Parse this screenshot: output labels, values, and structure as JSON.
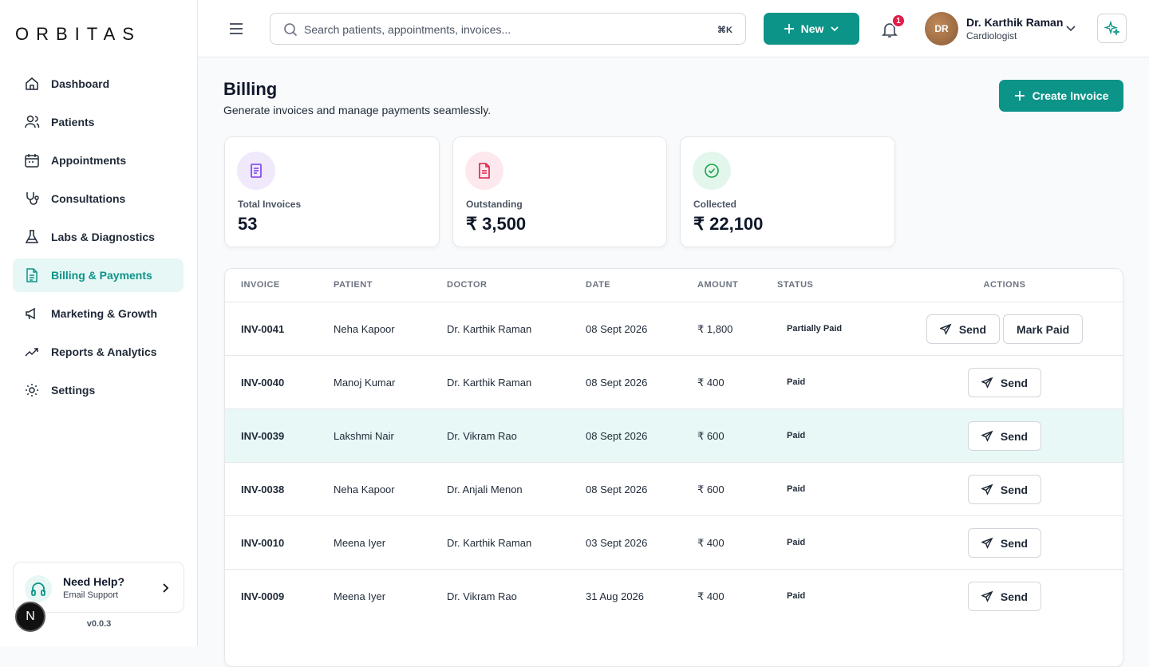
{
  "brand": "ORBITAS",
  "nav": [
    "Dashboard",
    "Patients",
    "Appointments",
    "Consultations",
    "Labs & Diagnostics",
    "Billing & Payments",
    "Marketing & Growth",
    "Reports & Analytics",
    "Settings"
  ],
  "active_nav": 5,
  "help": {
    "title": "Need Help?",
    "subtitle": "Email Support"
  },
  "version": "v0.0.3",
  "dev_badge": "N",
  "search": {
    "placeholder": "Search patients, appointments, invoices...",
    "shortcut": "⌘K"
  },
  "new_button": "New",
  "notifications": 1,
  "user": {
    "initials": "DR",
    "name": "Dr. Karthik Raman",
    "role": "Cardiologist"
  },
  "page": {
    "title": "Billing",
    "subtitle": "Generate invoices and manage payments seamlessly."
  },
  "create_button": "Create Invoice",
  "stats": [
    {
      "label": "Total Invoices",
      "value": "53"
    },
    {
      "label": "Outstanding",
      "value": "₹ 3,500"
    },
    {
      "label": "Collected",
      "value": "₹ 22,100"
    }
  ],
  "table": {
    "columns": [
      "INVOICE",
      "PATIENT",
      "DOCTOR",
      "DATE",
      "AMOUNT",
      "STATUS",
      "ACTIONS"
    ],
    "highlighted_row": 2,
    "rows": [
      [
        "INV-0041",
        "Neha Kapoor",
        "Dr. Karthik Raman",
        "08 Sept 2026",
        "₹ 1,800",
        "Partially Paid",
        [
          "Send",
          "Mark Paid"
        ]
      ],
      [
        "INV-0040",
        "Manoj Kumar",
        "Dr. Karthik Raman",
        "08 Sept 2026",
        "₹ 400",
        "Paid",
        [
          "Send"
        ]
      ],
      [
        "INV-0039",
        "Lakshmi Nair",
        "Dr. Vikram Rao",
        "08 Sept 2026",
        "₹ 600",
        "Paid",
        [
          "Send"
        ]
      ],
      [
        "INV-0038",
        "Neha Kapoor",
        "Dr. Anjali Menon",
        "08 Sept 2026",
        "₹ 600",
        "Paid",
        [
          "Send"
        ]
      ],
      [
        "INV-0010",
        "Meena Iyer",
        "Dr. Karthik Raman",
        "03 Sept 2026",
        "₹ 400",
        "Paid",
        [
          "Send"
        ]
      ],
      [
        "INV-0009",
        "Meena Iyer",
        "Dr. Vikram Rao",
        "31 Aug 2026",
        "₹ 400",
        "Paid",
        [
          "Send"
        ]
      ]
    ]
  }
}
